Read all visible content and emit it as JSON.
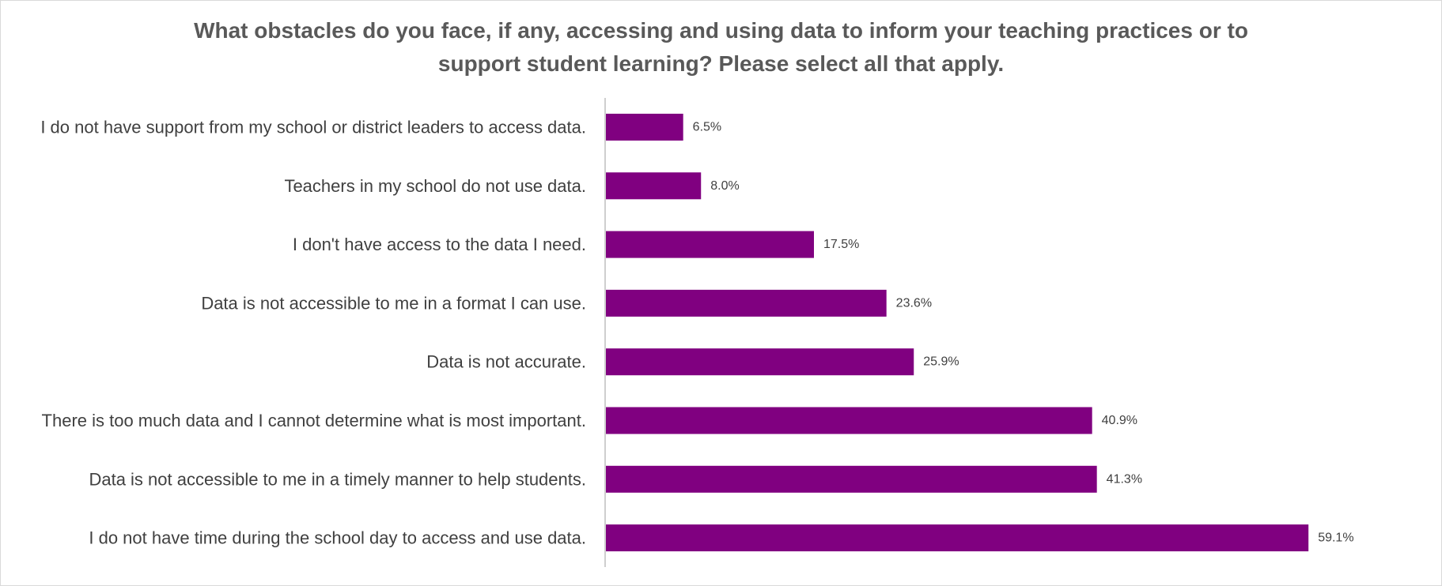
{
  "chart_data": {
    "type": "bar",
    "orientation": "horizontal",
    "title_lines": [
      "What obstacles do you face, if any, accessing and using data to inform your teaching practices or to",
      "support student learning? Please select all that apply."
    ],
    "categories": [
      "I do not have support from my school or district leaders to access data.",
      "Teachers in my school do not use data.",
      "I don't have access to the data I need.",
      "Data is not accessible to me in a format I can use.",
      "Data is not accurate.",
      "There is too much data and I cannot determine what is most important.",
      "Data is not accessible to me in a timely manner to help students.",
      "I do not have time during the school day to access and use data."
    ],
    "values": [
      6.5,
      8.0,
      17.5,
      23.6,
      25.9,
      40.9,
      41.3,
      59.1
    ],
    "value_labels": [
      "6.5%",
      "8.0%",
      "17.5%",
      "23.6%",
      "25.9%",
      "40.9%",
      "41.3%",
      "59.1%"
    ],
    "xlim": [
      0,
      70
    ],
    "xlabel": "",
    "ylabel": "",
    "grid": false,
    "legend": "none",
    "bar_color": "#800080"
  }
}
